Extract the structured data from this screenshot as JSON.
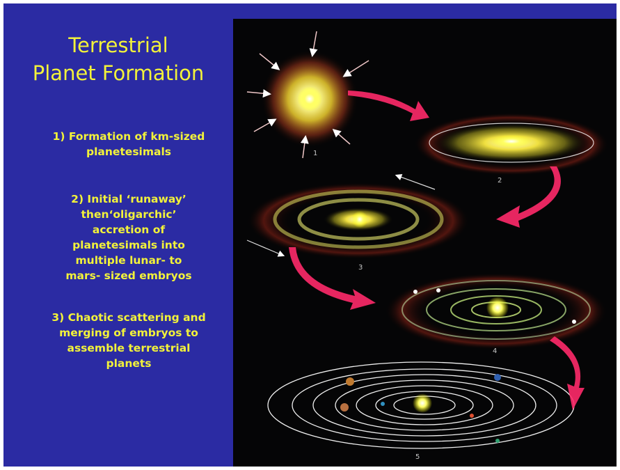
{
  "slide": {
    "title_line1": "Terrestrial",
    "title_line2": "Planet Formation",
    "bullets": [
      {
        "lines": [
          "1) Formation of km-sized",
          "planetesimals"
        ]
      },
      {
        "lines": [
          "2) Initial ‘runaway’",
          "then‘oligarchic’",
          "accretion of",
          "planetesimals into",
          "multiple lunar- to",
          "mars- sized embryos"
        ]
      },
      {
        "lines": [
          "3) Chaotic scattering and",
          "merging of embryos to",
          "assemble terrestrial",
          "planets"
        ]
      }
    ]
  },
  "figure": {
    "stage_labels": [
      "1",
      "2",
      "3",
      "4",
      "5"
    ],
    "colors": {
      "star": "#ffff66",
      "disk": "#e8e040",
      "arrow": "#ff2a6a",
      "orbit": "#ffffff",
      "background": "#050506"
    }
  }
}
